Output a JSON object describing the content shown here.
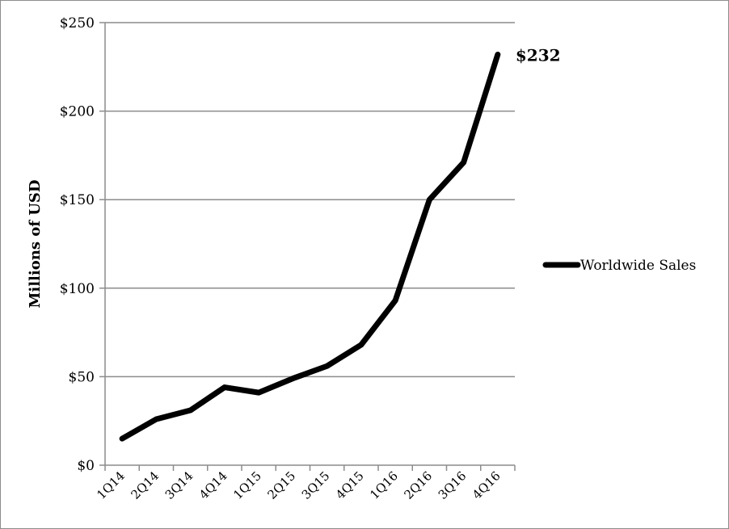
{
  "chart_data": {
    "type": "line",
    "title": "",
    "xlabel": "",
    "ylabel": "Millions of USD",
    "categories": [
      "1Q14",
      "2Q14",
      "3Q14",
      "4Q14",
      "1Q15",
      "2Q15",
      "3Q15",
      "4Q15",
      "1Q16",
      "2Q16",
      "3Q16",
      "4Q16"
    ],
    "series": [
      {
        "name": "Worldwide Sales",
        "values": [
          15,
          26,
          31,
          44,
          41,
          49,
          56,
          68,
          93,
          150,
          171,
          232
        ],
        "color": "#000000"
      }
    ],
    "ylim": [
      0,
      250
    ],
    "yticks": [
      0,
      50,
      100,
      150,
      200,
      250
    ],
    "ytick_labels": [
      "$0",
      "$50",
      "$100",
      "$150",
      "$200",
      "$250"
    ],
    "annotations": [
      {
        "text": "$232",
        "series": "Worldwide Sales",
        "category": "4Q16"
      }
    ],
    "grid": true,
    "legend": "right"
  }
}
